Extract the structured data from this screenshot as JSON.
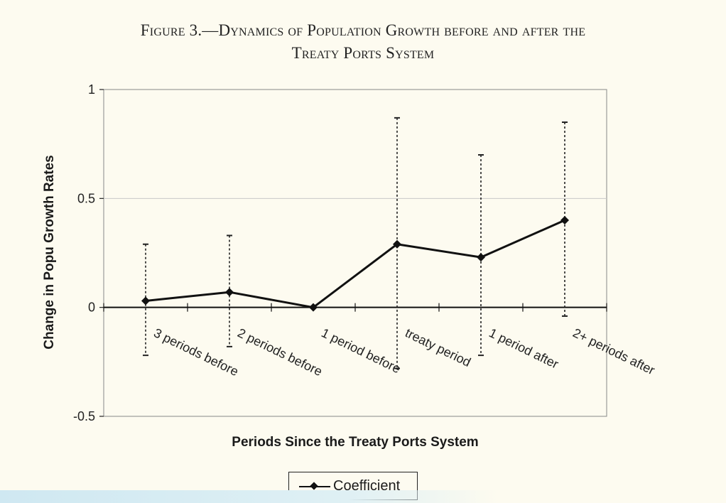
{
  "figure": {
    "title_line1": "Figure 3.—Dynamics of Population Growth before and after the",
    "title_line2": "Treaty Ports System"
  },
  "chart_data": {
    "type": "line",
    "title": "Figure 3.—Dynamics of Population Growth before and after the Treaty Ports System",
    "xlabel": "Periods Since the Treaty Ports System",
    "ylabel": "Change in Popu Growth Rates",
    "ylim": [
      -0.5,
      1
    ],
    "yticks": [
      1,
      0.5,
      0,
      -0.5
    ],
    "ytick_labels": [
      "1",
      "0.5",
      "0",
      "-0.5"
    ],
    "categories": [
      "3 periods before",
      "2 periods before",
      "1 period before",
      "treaty period",
      "1 period after",
      "2+ periods after"
    ],
    "series": [
      {
        "name": "Coefficient",
        "values": [
          0.03,
          0.07,
          0.0,
          0.29,
          0.23,
          0.4
        ],
        "error_upper": [
          0.29,
          0.33,
          null,
          0.87,
          0.7,
          0.85
        ],
        "error_lower": [
          -0.22,
          -0.18,
          null,
          -0.28,
          -0.22,
          -0.04
        ]
      }
    ],
    "grid": true,
    "legend": "bottom-center",
    "color": "#111111"
  },
  "legend": {
    "label": "Coefficient"
  }
}
